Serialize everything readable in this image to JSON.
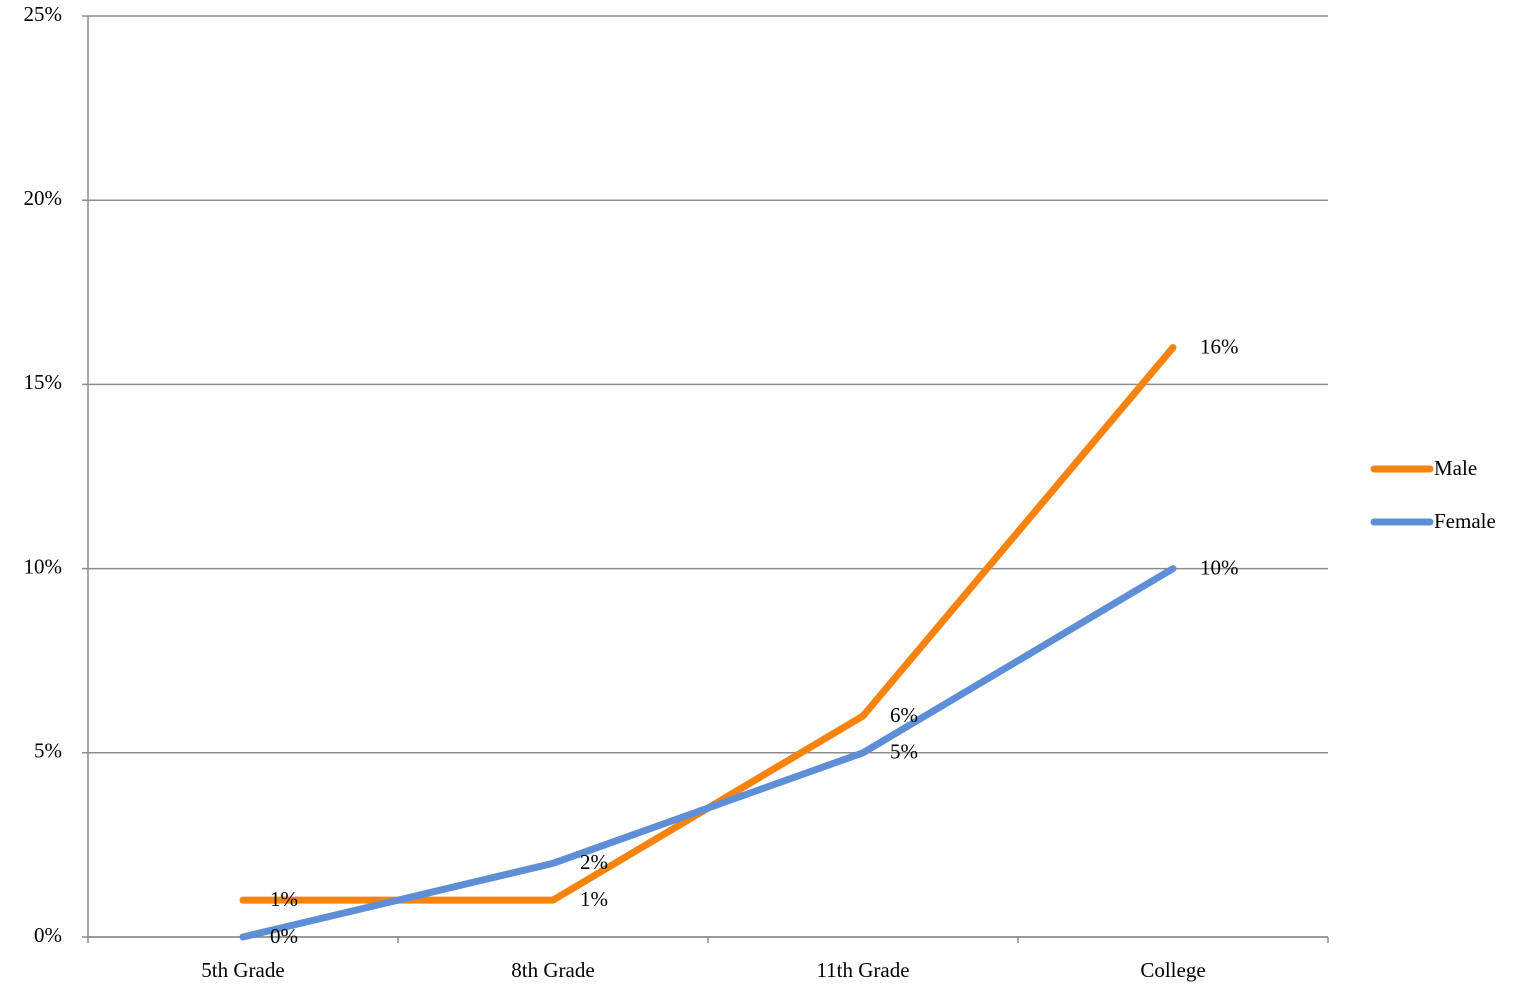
{
  "chart_data": {
    "type": "line",
    "categories": [
      "5th Grade",
      "8th Grade",
      "11th Grade",
      "College"
    ],
    "series": [
      {
        "name": "Male",
        "color": "#f7830f",
        "values": [
          1,
          1,
          6,
          16
        ],
        "value_labels": [
          "1%",
          "1%",
          "6%",
          "16%"
        ]
      },
      {
        "name": "Female",
        "color": "#5e8fd6",
        "values": [
          0,
          2,
          5,
          10
        ],
        "value_labels": [
          "0%",
          "2%",
          "5%",
          "10%"
        ]
      }
    ],
    "ylim": [
      0,
      25
    ],
    "yticks": [
      {
        "value": 0,
        "label": "0%"
      },
      {
        "value": 5,
        "label": "5%"
      },
      {
        "value": 10,
        "label": "10%"
      },
      {
        "value": 15,
        "label": "15%"
      },
      {
        "value": 20,
        "label": "20%"
      },
      {
        "value": 25,
        "label": "25%"
      }
    ],
    "grid": true,
    "legend": "right"
  }
}
